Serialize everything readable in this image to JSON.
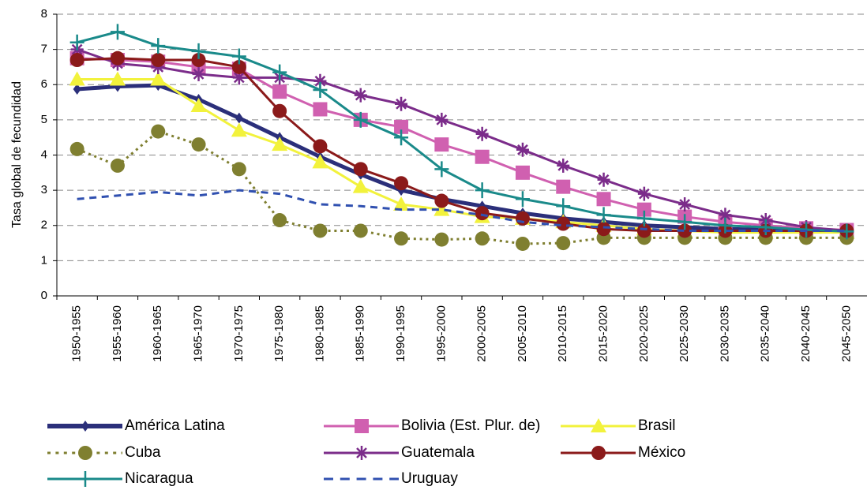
{
  "chart_data": {
    "type": "line",
    "y_label": "Tasa global de fecundidad",
    "categories": [
      "1950-1955",
      "1955-1960",
      "1960-1965",
      "1965-1970",
      "1970-1975",
      "1975-1980",
      "1980-1985",
      "1985-1990",
      "1990-1995",
      "1995-2000",
      "2000-2005",
      "2005-2010",
      "2010-2015",
      "2015-2020",
      "2020-2025",
      "2025-2030",
      "2030-2035",
      "2035-2040",
      "2040-2045",
      "2045-2050"
    ],
    "ylim": [
      0,
      8
    ],
    "yticks": [
      0,
      1,
      2,
      3,
      4,
      5,
      6,
      7,
      8
    ],
    "grid": true,
    "legend": "bottom",
    "series": [
      {
        "name": "América Latina",
        "color": "#2b2f7a",
        "marker": "diamond",
        "dash": "solid",
        "values": [
          5.87,
          5.95,
          5.98,
          5.58,
          5.05,
          4.5,
          3.95,
          3.45,
          3.0,
          2.75,
          2.55,
          2.35,
          2.2,
          2.1,
          2.0,
          1.95,
          1.9,
          1.88,
          1.85,
          1.83
        ]
      },
      {
        "name": "Bolivia (Est. Plur. de)",
        "color": "#d060b0",
        "marker": "square",
        "dash": "solid",
        "values": [
          6.75,
          6.7,
          6.65,
          6.5,
          6.45,
          5.8,
          5.3,
          5.0,
          4.8,
          4.3,
          3.95,
          3.5,
          3.1,
          2.75,
          2.45,
          2.25,
          2.1,
          2.0,
          1.92,
          1.87
        ]
      },
      {
        "name": "Brasil",
        "color": "#f2f23c",
        "marker": "triangle",
        "dash": "solid",
        "values": [
          6.15,
          6.15,
          6.15,
          5.4,
          4.7,
          4.3,
          3.8,
          3.1,
          2.6,
          2.45,
          2.25,
          2.2,
          2.1,
          2.0,
          1.9,
          1.85,
          1.8,
          1.8,
          1.8,
          1.8
        ]
      },
      {
        "name": "Cuba",
        "color": "#7f7f30",
        "marker": "circle",
        "dash": "dotted",
        "values": [
          4.17,
          3.7,
          4.67,
          4.3,
          3.6,
          2.15,
          1.85,
          1.85,
          1.63,
          1.6,
          1.63,
          1.48,
          1.5,
          1.65,
          1.65,
          1.65,
          1.65,
          1.65,
          1.65,
          1.65
        ]
      },
      {
        "name": "Guatemala",
        "color": "#7b2c8a",
        "marker": "star",
        "dash": "solid",
        "values": [
          7.0,
          6.6,
          6.5,
          6.3,
          6.2,
          6.2,
          6.1,
          5.7,
          5.45,
          5.0,
          4.6,
          4.15,
          3.7,
          3.3,
          2.9,
          2.6,
          2.3,
          2.15,
          1.95,
          1.85
        ]
      },
      {
        "name": "México",
        "color": "#8b1a1a",
        "marker": "circle",
        "dash": "solid",
        "values": [
          6.7,
          6.75,
          6.7,
          6.7,
          6.5,
          5.25,
          4.25,
          3.6,
          3.2,
          2.7,
          2.35,
          2.2,
          2.05,
          1.9,
          1.85,
          1.85,
          1.85,
          1.85,
          1.85,
          1.85
        ]
      },
      {
        "name": "Nicaragua",
        "color": "#1a8a8a",
        "marker": "plus",
        "dash": "solid",
        "values": [
          7.2,
          7.5,
          7.1,
          6.95,
          6.8,
          6.35,
          5.85,
          5.0,
          4.5,
          3.6,
          3.0,
          2.75,
          2.55,
          2.3,
          2.2,
          2.1,
          2.0,
          1.95,
          1.88,
          1.83
        ]
      },
      {
        "name": "Uruguay",
        "color": "#3050b0",
        "marker": "none",
        "dash": "dashed",
        "values": [
          2.75,
          2.85,
          2.95,
          2.85,
          3.0,
          2.9,
          2.6,
          2.55,
          2.45,
          2.45,
          2.3,
          2.1,
          2.0,
          1.95,
          1.9,
          1.85,
          1.85,
          1.85,
          1.85,
          1.85
        ]
      }
    ]
  }
}
